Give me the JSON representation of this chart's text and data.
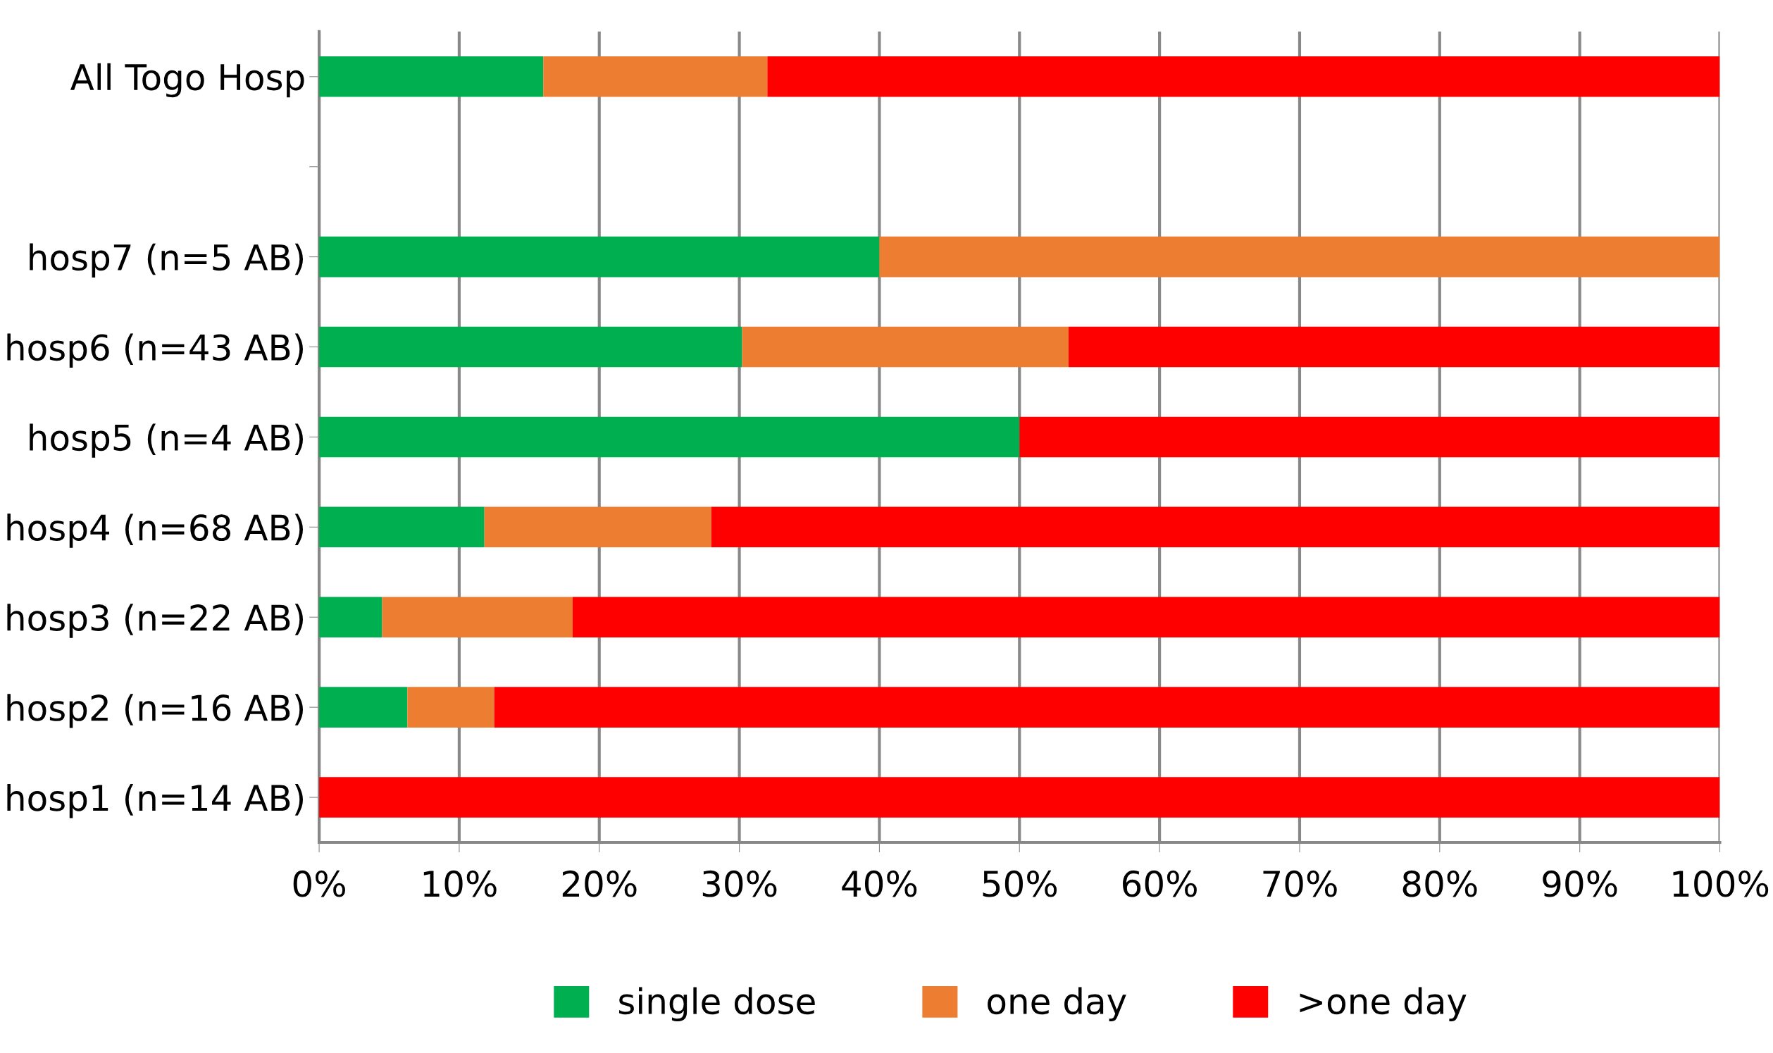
{
  "chart_data": {
    "type": "bar",
    "orientation": "horizontal",
    "stacked": true,
    "categories": [
      "All Togo Hosp",
      null,
      "hosp7 (n=5 AB)",
      "hosp6 (n=43 AB)",
      "hosp5 (n=4 AB)",
      "hosp4 (n=68 AB)",
      "hosp3 (n=22 AB)",
      "hosp2 (n=16 AB)",
      "hosp1 (n=14 AB)"
    ],
    "series": [
      {
        "name": "single dose",
        "color": "#00b050",
        "values": [
          16,
          null,
          40,
          30.2,
          50,
          11.8,
          4.5,
          6.3,
          0
        ]
      },
      {
        "name": "one day",
        "color": "#ed7d31",
        "values": [
          16,
          null,
          60,
          23.3,
          0,
          16.2,
          13.6,
          6.2,
          0
        ]
      },
      {
        "name": ">one day",
        "color": "#ff0000",
        "values": [
          68,
          null,
          0,
          46.5,
          50,
          72.0,
          81.9,
          87.5,
          100
        ]
      }
    ],
    "xlim": [
      0,
      100
    ],
    "xticks": [
      {
        "value": 0,
        "label": "0%"
      },
      {
        "value": 10,
        "label": "10%"
      },
      {
        "value": 20,
        "label": "20%"
      },
      {
        "value": 30,
        "label": "30%"
      },
      {
        "value": 40,
        "label": "40%"
      },
      {
        "value": 50,
        "label": "50%"
      },
      {
        "value": 60,
        "label": "60%"
      },
      {
        "value": 70,
        "label": "70%"
      },
      {
        "value": 80,
        "label": "80%"
      },
      {
        "value": 90,
        "label": "90%"
      },
      {
        "value": 100,
        "label": "100%"
      }
    ],
    "grid": "x",
    "legend": "bottom"
  }
}
